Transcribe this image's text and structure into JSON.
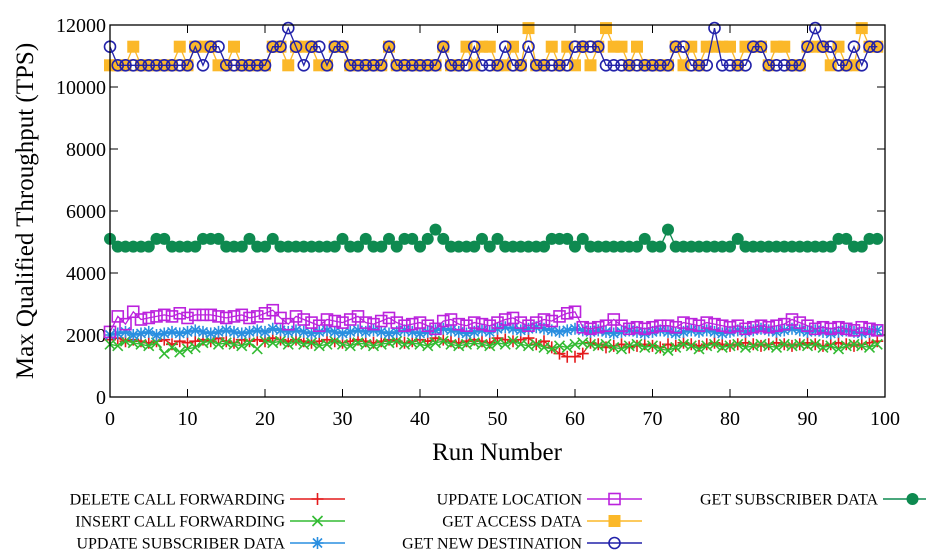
{
  "chart_data": {
    "type": "line",
    "title": "",
    "xlabel": "Run Number",
    "ylabel": "Max Qualified Throughput (TPS)",
    "xlim": [
      0,
      100
    ],
    "ylim": [
      0,
      12000
    ],
    "xticks": [
      "0",
      "10",
      "20",
      "30",
      "40",
      "50",
      "60",
      "70",
      "80",
      "90",
      "100"
    ],
    "yticks": [
      "0",
      "2000",
      "4000",
      "6000",
      "8000",
      "10000",
      "12000"
    ],
    "grid": false,
    "legend_position": "bottom",
    "x": [
      0,
      1,
      2,
      3,
      4,
      5,
      6,
      7,
      8,
      9,
      10,
      11,
      12,
      13,
      14,
      15,
      16,
      17,
      18,
      19,
      20,
      21,
      22,
      23,
      24,
      25,
      26,
      27,
      28,
      29,
      30,
      31,
      32,
      33,
      34,
      35,
      36,
      37,
      38,
      39,
      40,
      41,
      42,
      43,
      44,
      45,
      46,
      47,
      48,
      49,
      50,
      51,
      52,
      53,
      54,
      55,
      56,
      57,
      58,
      59,
      60,
      61,
      62,
      63,
      64,
      65,
      66,
      67,
      68,
      69,
      70,
      71,
      72,
      73,
      74,
      75,
      76,
      77,
      78,
      79,
      80,
      81,
      82,
      83,
      84,
      85,
      86,
      87,
      88,
      89,
      90,
      91,
      92,
      93,
      94,
      95,
      96,
      97,
      98,
      99
    ],
    "series": [
      {
        "name": "DELETE CALL FORWARDING",
        "color": "#e41a1c",
        "marker": "plus",
        "values": [
          1850,
          1900,
          1800,
          1850,
          1800,
          1750,
          1800,
          1850,
          1700,
          1800,
          1750,
          1800,
          1850,
          1800,
          1900,
          1800,
          1750,
          1850,
          1800,
          1850,
          1800,
          1900,
          1850,
          1800,
          1850,
          1800,
          1750,
          1800,
          1850,
          1800,
          1750,
          1800,
          1850,
          1800,
          1750,
          1800,
          1850,
          1800,
          1750,
          1800,
          1850,
          1800,
          1900,
          1850,
          1800,
          1750,
          1800,
          1850,
          1800,
          1750,
          1900,
          1850,
          1800,
          1850,
          1900,
          1700,
          1800,
          1600,
          1400,
          1300,
          1300,
          1400,
          1750,
          1700,
          1600,
          1650,
          1700,
          1600,
          1650,
          1700,
          1650,
          1600,
          1700,
          1650,
          1750,
          1700,
          1650,
          1700,
          1750,
          1700,
          1650,
          1700,
          1750,
          1700,
          1650,
          1700,
          1750,
          1700,
          1650,
          1700,
          1750,
          1700,
          1650,
          1700,
          1750,
          1700,
          1650,
          1700,
          1750,
          1800
        ]
      },
      {
        "name": "INSERT CALL FORWARDING",
        "color": "#33bb33",
        "marker": "cross",
        "values": [
          1700,
          1650,
          1800,
          1750,
          1700,
          1650,
          1750,
          1400,
          1600,
          1450,
          1550,
          1600,
          1750,
          1800,
          1700,
          1750,
          1700,
          1650,
          1750,
          1550,
          1800,
          1750,
          1800,
          1700,
          1800,
          1700,
          1750,
          1650,
          1700,
          1800,
          1700,
          1650,
          1750,
          1700,
          1650,
          1700,
          1750,
          1800,
          1700,
          1750,
          1700,
          1650,
          1750,
          1800,
          1700,
          1650,
          1700,
          1750,
          1700,
          1650,
          1750,
          1700,
          1800,
          1700,
          1650,
          1700,
          1600,
          1550,
          1650,
          1600,
          1700,
          1750,
          1700,
          1650,
          1700,
          1600,
          1550,
          1650,
          1700,
          1600,
          1650,
          1550,
          1500,
          1600,
          1700,
          1650,
          1550,
          1650,
          1700,
          1600,
          1650,
          1700,
          1600,
          1650,
          1700,
          1650,
          1600,
          1700,
          1650,
          1700,
          1650,
          1700,
          1600,
          1650,
          1550,
          1650,
          1700,
          1650,
          1600,
          1700
        ]
      },
      {
        "name": "UPDATE SUBSCRIBER DATA",
        "color": "#2a8fe0",
        "marker": "star",
        "values": [
          2000,
          2050,
          2100,
          2000,
          2050,
          2100,
          2000,
          2050,
          2100,
          2050,
          2100,
          2150,
          2100,
          2050,
          2100,
          2150,
          2100,
          2050,
          2100,
          2150,
          2100,
          2200,
          2150,
          2100,
          2150,
          2100,
          2050,
          2100,
          2150,
          2100,
          2050,
          2100,
          2150,
          2100,
          2150,
          2100,
          2050,
          2100,
          2150,
          2100,
          2050,
          2100,
          2150,
          2200,
          2150,
          2100,
          2050,
          2100,
          2150,
          2100,
          2200,
          2250,
          2200,
          2150,
          2200,
          2250,
          2200,
          2150,
          2100,
          2150,
          2200,
          2150,
          2100,
          2150,
          2100,
          2050,
          2100,
          2150,
          2100,
          2050,
          2100,
          2150,
          2100,
          2050,
          2100,
          2150,
          2100,
          2150,
          2100,
          2050,
          2100,
          2150,
          2100,
          2150,
          2200,
          2150,
          2100,
          2150,
          2200,
          2150,
          2100,
          2150,
          2100,
          2050,
          2100,
          2150,
          2100,
          2050,
          2100,
          2150
        ]
      },
      {
        "name": "UPDATE LOCATION",
        "color": "#bb22dd",
        "marker": "square",
        "values": [
          2100,
          2600,
          2350,
          2750,
          2500,
          2550,
          2600,
          2650,
          2600,
          2700,
          2550,
          2650,
          2650,
          2650,
          2600,
          2550,
          2600,
          2650,
          2550,
          2600,
          2700,
          2800,
          2550,
          2350,
          2600,
          2500,
          2400,
          2300,
          2500,
          2450,
          2400,
          2500,
          2600,
          2400,
          2350,
          2450,
          2550,
          2400,
          2300,
          2350,
          2400,
          2300,
          2200,
          2450,
          2500,
          2350,
          2300,
          2400,
          2350,
          2300,
          2400,
          2500,
          2550,
          2400,
          2300,
          2400,
          2500,
          2450,
          2600,
          2700,
          2750,
          2250,
          2200,
          2250,
          2300,
          2500,
          2300,
          2200,
          2250,
          2200,
          2250,
          2300,
          2300,
          2250,
          2400,
          2350,
          2300,
          2400,
          2350,
          2300,
          2250,
          2300,
          2200,
          2250,
          2300,
          2250,
          2300,
          2350,
          2500,
          2400,
          2300,
          2200,
          2250,
          2200,
          2250,
          2200,
          2150,
          2250,
          2200,
          2150
        ]
      },
      {
        "name": "GET ACCESS DATA",
        "color": "#fbb829",
        "marker": "filled-square",
        "values": [
          10700,
          10700,
          10700,
          11300,
          10700,
          10700,
          10700,
          10700,
          10700,
          11300,
          10700,
          11300,
          11300,
          11300,
          10700,
          10700,
          11300,
          10700,
          10700,
          10700,
          10700,
          11300,
          11300,
          10700,
          11300,
          11300,
          11300,
          10700,
          10700,
          11300,
          11300,
          10700,
          10700,
          10700,
          10700,
          10700,
          11300,
          10700,
          10700,
          10700,
          10700,
          10700,
          10700,
          11300,
          10700,
          10700,
          11300,
          10700,
          11300,
          11300,
          10700,
          10700,
          11300,
          10700,
          11900,
          10700,
          10700,
          11300,
          10700,
          11300,
          10700,
          11300,
          10700,
          11300,
          11900,
          11300,
          11300,
          10700,
          11300,
          10700,
          10700,
          10700,
          10700,
          11300,
          10700,
          11300,
          10700,
          11300,
          11300,
          11300,
          11300,
          10700,
          11300,
          11300,
          11300,
          10700,
          11300,
          11300,
          10700,
          10700,
          11300,
          11300,
          11300,
          10700,
          11300,
          10700,
          10700,
          11900,
          11300,
          11300
        ]
      },
      {
        "name": "GET NEW DESTINATION",
        "color": "#2222aa",
        "marker": "circle",
        "values": [
          11300,
          10700,
          10700,
          10700,
          10700,
          10700,
          10700,
          10700,
          10700,
          10700,
          10700,
          11300,
          10700,
          11300,
          11300,
          10700,
          10700,
          10700,
          10700,
          10700,
          10700,
          11300,
          11300,
          11900,
          11300,
          10700,
          11300,
          11300,
          10700,
          11300,
          11300,
          10700,
          10700,
          10700,
          10700,
          10700,
          11300,
          10700,
          10700,
          10700,
          10700,
          10700,
          10700,
          11300,
          10700,
          10700,
          10700,
          11300,
          10700,
          10700,
          10700,
          11300,
          10700,
          10700,
          11300,
          10700,
          10700,
          10700,
          10700,
          10700,
          11300,
          11300,
          11300,
          11300,
          10700,
          10700,
          10700,
          10700,
          10700,
          10700,
          10700,
          10700,
          10700,
          11300,
          11300,
          10700,
          10700,
          10700,
          11900,
          10700,
          10700,
          10700,
          10700,
          11300,
          11300,
          10700,
          10700,
          10700,
          10700,
          10700,
          11300,
          11900,
          11300,
          11300,
          10700,
          10700,
          11300,
          10700,
          11300,
          11300
        ]
      },
      {
        "name": "GET SUBSCRIBER DATA",
        "color": "#0e8a50",
        "marker": "filled-circle",
        "values": [
          5100,
          4850,
          4850,
          4850,
          4850,
          4850,
          5100,
          5100,
          4850,
          4850,
          4850,
          4850,
          5100,
          5100,
          5100,
          4850,
          4850,
          4850,
          5100,
          4850,
          4850,
          5100,
          4850,
          4850,
          4850,
          4850,
          4850,
          4850,
          4850,
          4850,
          5100,
          4850,
          4850,
          5100,
          4850,
          4850,
          5100,
          4850,
          5100,
          5100,
          4850,
          5100,
          5400,
          5100,
          4850,
          4850,
          4850,
          4850,
          5100,
          4850,
          5100,
          4850,
          4850,
          4850,
          4850,
          4850,
          4850,
          5100,
          5100,
          5100,
          4850,
          5100,
          4850,
          4850,
          4850,
          4850,
          4850,
          4850,
          4850,
          5100,
          4850,
          4850,
          5400,
          4850,
          4850,
          4850,
          4850,
          4850,
          4850,
          4850,
          4850,
          5100,
          4850,
          4850,
          4850,
          4850,
          4850,
          4850,
          4850,
          4850,
          4850,
          4850,
          4850,
          4850,
          5100,
          5100,
          4850,
          4850,
          5100,
          5100
        ]
      }
    ]
  }
}
